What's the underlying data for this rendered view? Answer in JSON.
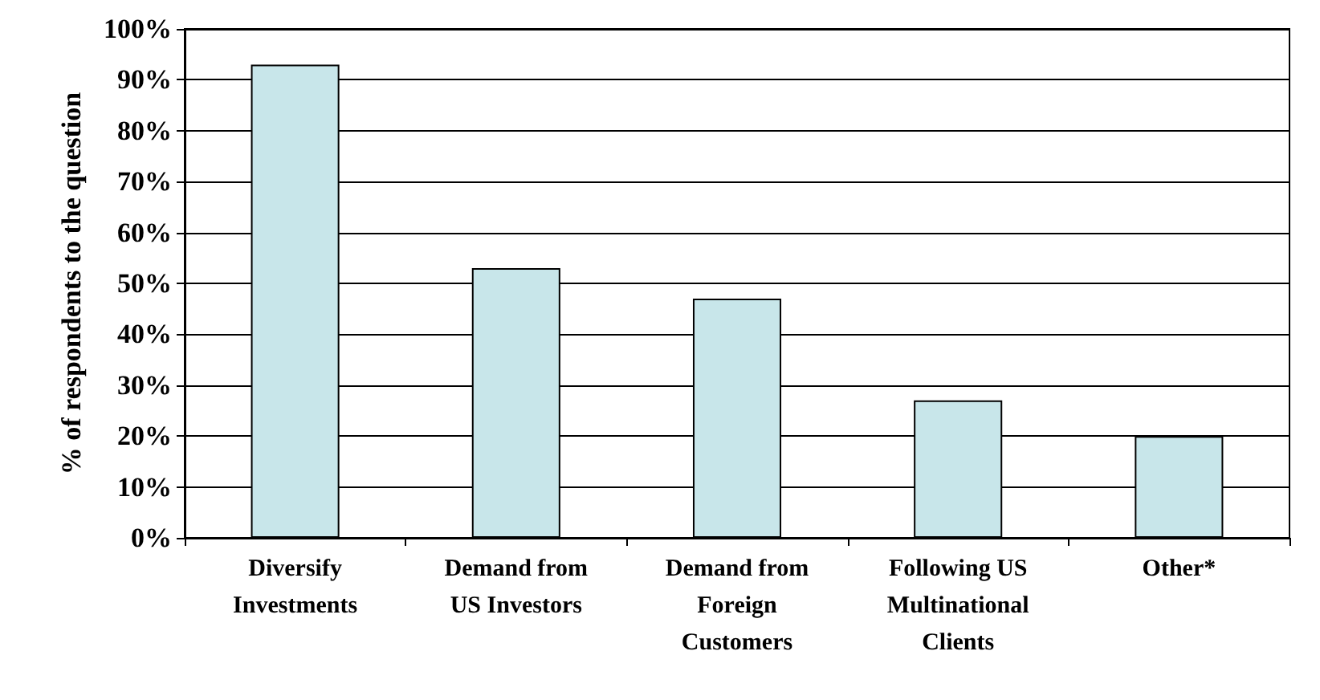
{
  "chart_data": {
    "type": "bar",
    "ylabel": "% of respondents to the question",
    "categories": [
      "Diversify\nInvestments",
      "Demand from\nUS Investors",
      "Demand from\nForeign\nCustomers",
      "Following US\nMultinational\nClients",
      "Other*"
    ],
    "values": [
      93,
      53,
      47,
      27,
      20
    ],
    "color": "#c8e6ea",
    "ylim": [
      0,
      100
    ],
    "yticks": [
      {
        "value": 0,
        "label": "0%"
      },
      {
        "value": 10,
        "label": "10%"
      },
      {
        "value": 20,
        "label": "20%"
      },
      {
        "value": 30,
        "label": "30%"
      },
      {
        "value": 40,
        "label": "40%"
      },
      {
        "value": 50,
        "label": "50%"
      },
      {
        "value": 60,
        "label": "60%"
      },
      {
        "value": 70,
        "label": "70%"
      },
      {
        "value": 80,
        "label": "80%"
      },
      {
        "value": 90,
        "label": "90%"
      },
      {
        "value": 100,
        "label": "100%"
      }
    ],
    "grid": "y"
  }
}
